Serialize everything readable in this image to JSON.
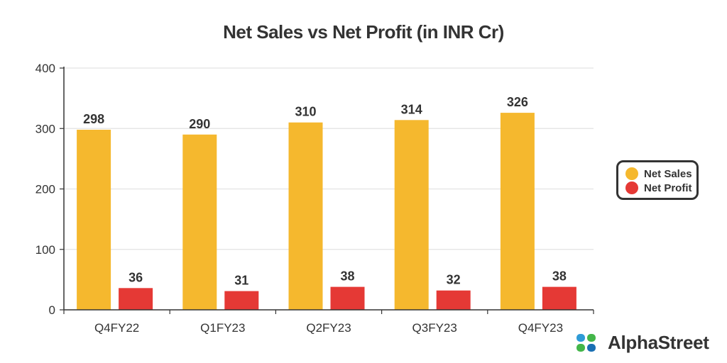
{
  "chart_data": {
    "type": "bar",
    "title": "Net Sales vs Net Profit (in INR Cr)",
    "categories": [
      "Q4FY22",
      "Q1FY23",
      "Q2FY23",
      "Q3FY23",
      "Q4FY23"
    ],
    "series": [
      {
        "name": "Net Sales",
        "values": [
          298,
          290,
          310,
          314,
          326
        ],
        "color": "#F5B82E"
      },
      {
        "name": "Net Profit",
        "values": [
          36,
          31,
          38,
          32,
          38
        ],
        "color": "#E53935"
      }
    ],
    "xlabel": "",
    "ylabel": "",
    "ylim": [
      0,
      400
    ],
    "yticks": [
      0,
      100,
      200,
      300,
      400
    ],
    "grid": true,
    "legend_position": "right"
  },
  "legend": {
    "items": [
      {
        "label": "Net Sales",
        "color": "#F5B82E"
      },
      {
        "label": "Net Profit",
        "color": "#E53935"
      }
    ]
  },
  "brand": {
    "name": "AlphaStreet",
    "logo_icon": "alphastreet-logo-icon",
    "logo_colors": [
      "#2E9BD6",
      "#43B649",
      "#1A6FB3"
    ]
  }
}
